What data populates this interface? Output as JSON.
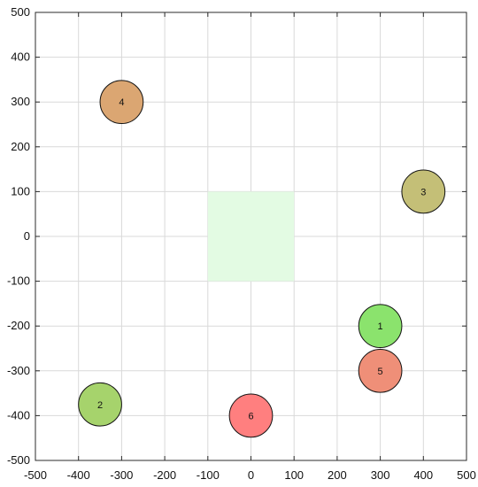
{
  "chart_data": {
    "type": "scatter",
    "title": "",
    "xlabel": "",
    "ylabel": "",
    "xlim": [
      -500,
      500
    ],
    "ylim": [
      -500,
      500
    ],
    "x_ticks": [
      -500,
      -400,
      -300,
      -200,
      -100,
      0,
      100,
      200,
      300,
      400,
      500
    ],
    "y_ticks": [
      -500,
      -400,
      -300,
      -200,
      -100,
      0,
      100,
      200,
      300,
      400,
      500
    ],
    "x_tick_labels": [
      "-500",
      "-400",
      "-300",
      "-200",
      "-100",
      "0",
      "100",
      "200",
      "300",
      "400",
      "500"
    ],
    "y_tick_labels": [
      "-500",
      "-400",
      "-300",
      "-200",
      "-100",
      "0",
      "100",
      "200",
      "300",
      "400",
      "500"
    ],
    "grid": true,
    "region": {
      "x": [
        -100,
        100
      ],
      "y": [
        -100,
        100
      ],
      "color": "#e3fbe3"
    },
    "points": [
      {
        "label": "1",
        "x": 300,
        "y": -200,
        "radius": 50,
        "color": "#8be36d"
      },
      {
        "label": "2",
        "x": -350,
        "y": -375,
        "radius": 50,
        "color": "#a6d36c"
      },
      {
        "label": "3",
        "x": 400,
        "y": 100,
        "radius": 50,
        "color": "#c4bf77"
      },
      {
        "label": "4",
        "x": -300,
        "y": 300,
        "radius": 50,
        "color": "#dba672"
      },
      {
        "label": "5",
        "x": 300,
        "y": -300,
        "radius": 50,
        "color": "#ef8f78"
      },
      {
        "label": "6",
        "x": 0,
        "y": -400,
        "radius": 50,
        "color": "#ff7f7f"
      }
    ]
  }
}
